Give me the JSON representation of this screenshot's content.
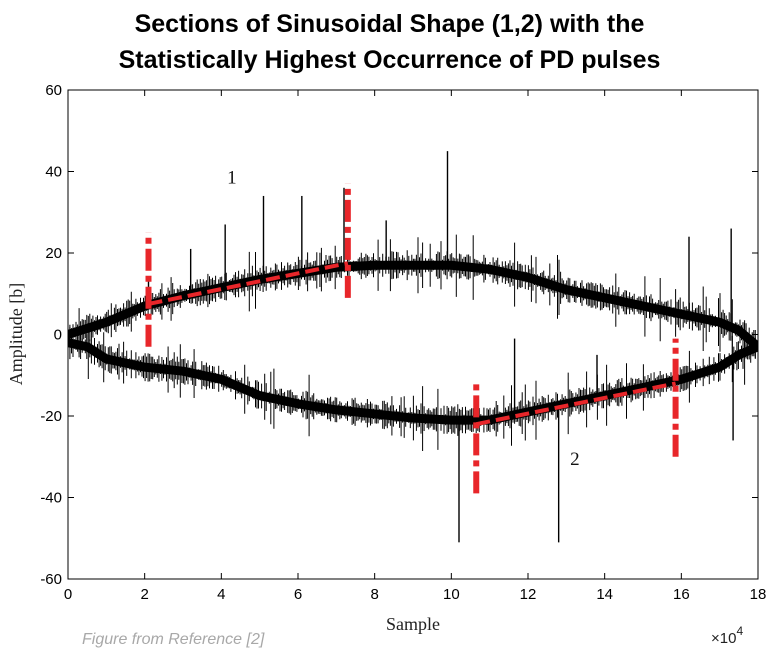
{
  "chart_data": {
    "type": "line",
    "title_lines": [
      "Sections of Sinusoidal Shape (1,2) with the",
      "Statistically Highest Occurrence of PD pulses"
    ],
    "xlabel": "Sample",
    "ylabel": "Amplitude [b]",
    "x_multiplier": "×10",
    "x_multiplier_exp": "4",
    "xlim": [
      0,
      18
    ],
    "ylim": [
      -60,
      60
    ],
    "x_ticks": [
      0,
      2,
      4,
      6,
      8,
      10,
      12,
      14,
      16,
      18
    ],
    "y_ticks": [
      60,
      40,
      20,
      0,
      -20,
      -40,
      -60
    ],
    "grid": false,
    "series": [
      {
        "name": "1",
        "x": [
          0,
          1,
          2,
          3,
          4,
          5,
          6,
          7,
          8,
          9,
          10,
          11,
          12,
          13,
          14,
          15,
          16,
          17,
          17.5,
          18
        ],
        "y": [
          0,
          3,
          7,
          9.5,
          11.5,
          13.5,
          15,
          16.5,
          17,
          17,
          17,
          16,
          14,
          11,
          9,
          7,
          5,
          3,
          1,
          -3
        ]
      },
      {
        "name": "2",
        "x": [
          0,
          0.5,
          1,
          2,
          3,
          4,
          5,
          6,
          7,
          8,
          9,
          10,
          11,
          12,
          13,
          14,
          15,
          16,
          17,
          17.5,
          18
        ],
        "y": [
          -2,
          -3,
          -6,
          -8,
          -9,
          -11,
          -15,
          -17,
          -18.5,
          -19.5,
          -20.5,
          -21,
          -21,
          -19,
          -17,
          -15,
          -13,
          -11,
          -8,
          -5,
          -3
        ]
      }
    ],
    "pulses": [
      {
        "x": 2.1,
        "y": 14
      },
      {
        "x": 4.1,
        "y": 27
      },
      {
        "x": 5.1,
        "y": 34
      },
      {
        "x": 6.1,
        "y": 34
      },
      {
        "x": 7.2,
        "y": 36
      },
      {
        "x": 9.9,
        "y": 45
      },
      {
        "x": 11.65,
        "y": -1
      },
      {
        "x": 16.2,
        "y": 24
      },
      {
        "x": 17.3,
        "y": 26
      },
      {
        "x": 10.2,
        "y": -51
      },
      {
        "x": 12.8,
        "y": -51
      },
      {
        "x": 17.35,
        "y": -26
      },
      {
        "x": 3.2,
        "y": 21
      },
      {
        "x": 8.3,
        "y": 28
      },
      {
        "x": 13.8,
        "y": -5
      }
    ],
    "highlight_segments": [
      {
        "name": "section-1",
        "x": [
          2.1,
          7.3
        ],
        "y": [
          7.5,
          17.5
        ]
      },
      {
        "name": "section-2",
        "x": [
          10.65,
          15.85
        ],
        "y": [
          -22,
          -12
        ]
      }
    ],
    "highlight_markers": [
      {
        "x": 2.1,
        "y_range": [
          -3,
          25
        ]
      },
      {
        "x": 7.3,
        "y_range": [
          9,
          37
        ]
      },
      {
        "x": 10.65,
        "y_range": [
          -39,
          -11
        ]
      },
      {
        "x": 15.85,
        "y_range": [
          -30,
          -1
        ]
      }
    ],
    "annotations": [
      {
        "text": "1",
        "x": 4.15,
        "y": 37
      },
      {
        "text": "2",
        "x": 13.1,
        "y": -32
      }
    ],
    "colors": {
      "curve": "#000000",
      "highlight": "#e8262a",
      "caption": "#a8a8a8"
    }
  },
  "caption": "Figure from Reference [2]"
}
